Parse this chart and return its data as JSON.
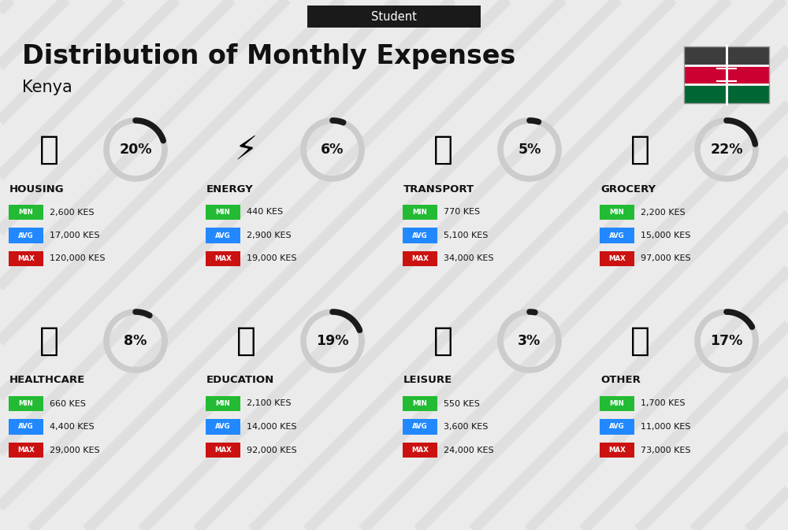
{
  "title": "Distribution of Monthly Expenses",
  "subtitle": "Kenya",
  "header_label": "Student",
  "bg_color": "#ebebeb",
  "header_bg": "#1a1a1a",
  "header_fg": "#ffffff",
  "title_color": "#111111",
  "categories": [
    {
      "name": "HOUSING",
      "pct": 20,
      "min_val": "2,600 KES",
      "avg_val": "17,000 KES",
      "max_val": "120,000 KES",
      "col": 0,
      "row": 0
    },
    {
      "name": "ENERGY",
      "pct": 6,
      "min_val": "440 KES",
      "avg_val": "2,900 KES",
      "max_val": "19,000 KES",
      "col": 1,
      "row": 0
    },
    {
      "name": "TRANSPORT",
      "pct": 5,
      "min_val": "770 KES",
      "avg_val": "5,100 KES",
      "max_val": "34,000 KES",
      "col": 2,
      "row": 0
    },
    {
      "name": "GROCERY",
      "pct": 22,
      "min_val": "2,200 KES",
      "avg_val": "15,000 KES",
      "max_val": "97,000 KES",
      "col": 3,
      "row": 0
    },
    {
      "name": "HEALTHCARE",
      "pct": 8,
      "min_val": "660 KES",
      "avg_val": "4,400 KES",
      "max_val": "29,000 KES",
      "col": 0,
      "row": 1
    },
    {
      "name": "EDUCATION",
      "pct": 19,
      "min_val": "2,100 KES",
      "avg_val": "14,000 KES",
      "max_val": "92,000 KES",
      "col": 1,
      "row": 1
    },
    {
      "name": "LEISURE",
      "pct": 3,
      "min_val": "550 KES",
      "avg_val": "3,600 KES",
      "max_val": "24,000 KES",
      "col": 2,
      "row": 1
    },
    {
      "name": "OTHER",
      "pct": 17,
      "min_val": "1,700 KES",
      "avg_val": "11,000 KES",
      "max_val": "73,000 KES",
      "col": 3,
      "row": 1
    }
  ],
  "min_color": "#22bb33",
  "avg_color": "#2288ff",
  "max_color": "#cc1111",
  "arc_color": "#1a1a1a",
  "arc_bg": "#cccccc",
  "stripe_color": "#d4d4d4",
  "flag_colors": [
    "#3d3d3d",
    "#cc0033",
    "#006633"
  ],
  "flag_border": "#999999"
}
